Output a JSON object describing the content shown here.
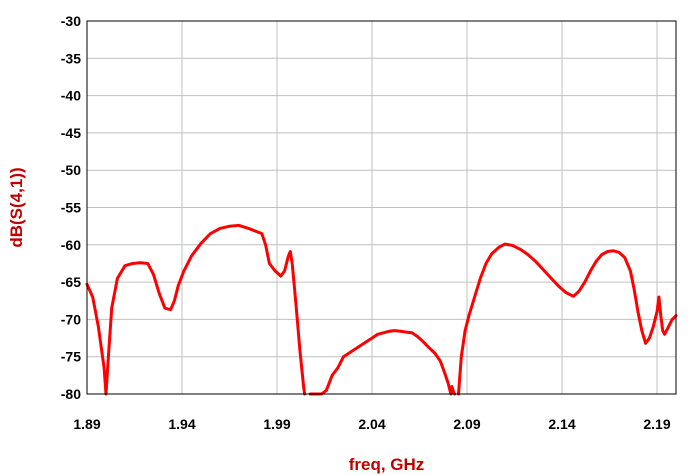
{
  "chart_data": {
    "type": "line",
    "xlabel": "freq, GHz",
    "ylabel": "dB(S(4,1))",
    "xlim": [
      1.89,
      2.2
    ],
    "ylim": [
      -80,
      -30
    ],
    "x_ticks": [
      "1.89",
      "1.94",
      "1.99",
      "2.04",
      "2.09",
      "2.14",
      "2.19"
    ],
    "y_ticks": [
      "-30",
      "-35",
      "-40",
      "-45",
      "-50",
      "-55",
      "-60",
      "-65",
      "-70",
      "-75",
      "-80"
    ],
    "grid": true,
    "series": [
      {
        "color": "#ff0000",
        "x": [
          1.89,
          1.893,
          1.896,
          1.899,
          1.9,
          1.901,
          1.903,
          1.906,
          1.91,
          1.914,
          1.918,
          1.922,
          1.925,
          1.928,
          1.931,
          1.934,
          1.936,
          1.938,
          1.941,
          1.945,
          1.95,
          1.955,
          1.96,
          1.965,
          1.97,
          1.975,
          1.979,
          1.982,
          1.984,
          1.986,
          1.989,
          1.992,
          1.994,
          1.996,
          1.997,
          1.998,
          2.0,
          2.002,
          2.004,
          2.0045
        ],
        "y": [
          -65.3,
          -67.0,
          -71.0,
          -76.5,
          -80.0,
          -76.0,
          -68.5,
          -64.5,
          -62.8,
          -62.5,
          -62.4,
          -62.5,
          -64.0,
          -66.5,
          -68.5,
          -68.7,
          -67.5,
          -65.5,
          -63.5,
          -61.5,
          -59.8,
          -58.5,
          -57.8,
          -57.5,
          -57.4,
          -57.8,
          -58.2,
          -58.5,
          -60.0,
          -62.5,
          -63.5,
          -64.2,
          -63.5,
          -61.5,
          -60.9,
          -62.5,
          -68.0,
          -74.0,
          -79.0,
          -80.0
        ]
      },
      {
        "color": "#ff0000",
        "x": [
          2.0075,
          2.01,
          2.0135,
          2.016,
          2.019,
          2.022,
          2.025,
          2.028,
          2.031,
          2.034,
          2.037,
          2.04,
          2.043,
          2.046,
          2.049,
          2.052,
          2.055,
          2.058,
          2.061,
          2.064,
          2.067,
          2.07,
          2.073,
          2.076,
          2.078,
          2.08,
          2.0815,
          2.082,
          2.083,
          2.0835
        ],
        "y": [
          -80.0,
          -80.0,
          -80.0,
          -79.5,
          -77.5,
          -76.5,
          -75.0,
          -74.5,
          -74.0,
          -73.5,
          -73.0,
          -72.5,
          -72.0,
          -71.8,
          -71.6,
          -71.5,
          -71.6,
          -71.7,
          -71.8,
          -72.3,
          -73.0,
          -73.8,
          -74.5,
          -75.6,
          -77.0,
          -78.5,
          -80.0,
          -79.0,
          -79.8,
          -80.0
        ]
      },
      {
        "color": "#ff0000",
        "x": [
          2.0855,
          2.087,
          2.089,
          2.091,
          2.094,
          2.097,
          2.1,
          2.103,
          2.107,
          2.11,
          2.114,
          2.118,
          2.122,
          2.126,
          2.13,
          2.134,
          2.138,
          2.142,
          2.146,
          2.149,
          2.152,
          2.155,
          2.158,
          2.161,
          2.164,
          2.167,
          2.17,
          2.173,
          2.176,
          2.178,
          2.18,
          2.182,
          2.184,
          2.186,
          2.188,
          2.19,
          2.191,
          2.192,
          2.193,
          2.194,
          2.196,
          2.198,
          2.2
        ],
        "y": [
          -80.0,
          -75.0,
          -71.5,
          -69.5,
          -67.0,
          -64.5,
          -62.5,
          -61.2,
          -60.3,
          -59.9,
          -60.1,
          -60.6,
          -61.3,
          -62.2,
          -63.3,
          -64.4,
          -65.5,
          -66.4,
          -66.9,
          -66.2,
          -65.0,
          -63.5,
          -62.2,
          -61.3,
          -60.9,
          -60.8,
          -61.0,
          -61.7,
          -63.5,
          -66.0,
          -69.0,
          -71.5,
          -73.2,
          -72.5,
          -71.0,
          -69.0,
          -67.0,
          -69.5,
          -71.5,
          -72.0,
          -71.0,
          -70.0,
          -69.5
        ]
      }
    ]
  }
}
